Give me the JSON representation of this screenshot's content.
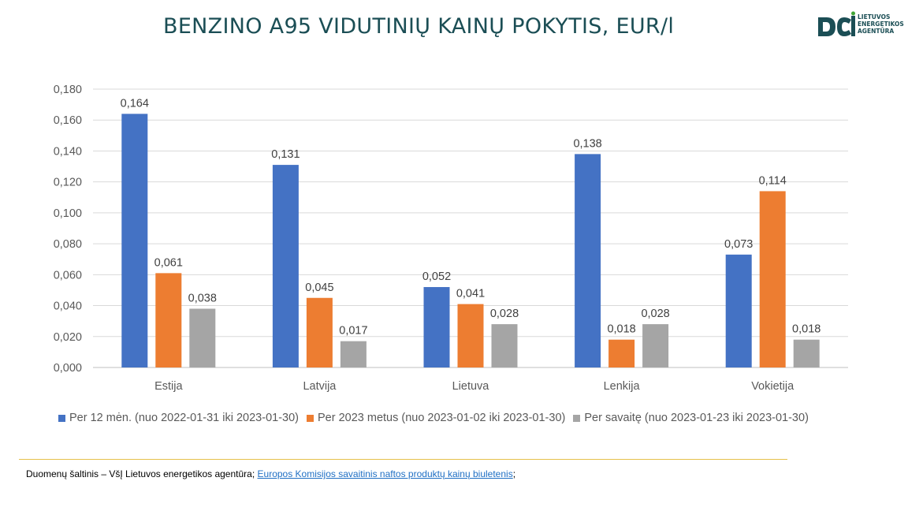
{
  "title": "BENZINO A95 VIDUTINIŲ KAINŲ POKYTIS, EUR/l",
  "logo": {
    "lines": [
      "LIETUVOS",
      "ENERGETIKOS",
      "AGENTŪRA"
    ],
    "mark_color": "#1b4e55"
  },
  "chart_data": {
    "type": "bar",
    "categories": [
      "Estija",
      "Latvija",
      "Lietuva",
      "Lenkija",
      "Vokietija"
    ],
    "series": [
      {
        "name": "Per 12 mėn. (nuo 2022-01-31 iki 2023-01-30)",
        "color": "#4472c4",
        "values": [
          0.164,
          0.131,
          0.052,
          0.138,
          0.073
        ],
        "labels": [
          "0,164",
          "0,131",
          "0,052",
          "0,138",
          "0,073"
        ]
      },
      {
        "name": "Per 2023 metus (nuo 2023-01-02 iki 2023-01-30)",
        "color": "#ed7d31",
        "values": [
          0.061,
          0.045,
          0.041,
          0.018,
          0.114
        ],
        "labels": [
          "0,061",
          "0,045",
          "0,041",
          "0,018",
          "0,114"
        ]
      },
      {
        "name": "Per savaitę (nuo 2023-01-23 iki 2023-01-30)",
        "color": "#a5a5a5",
        "values": [
          0.038,
          0.017,
          0.028,
          0.028,
          0.018
        ],
        "labels": [
          "0,038",
          "0,017",
          "0,028",
          "0,028",
          "0,018"
        ]
      }
    ],
    "yticks": [
      "0,000",
      "0,020",
      "0,040",
      "0,060",
      "0,080",
      "0,100",
      "0,120",
      "0,140",
      "0,160",
      "0,180"
    ],
    "ylim": [
      0,
      0.18
    ],
    "grid": true,
    "legend": "bottom"
  },
  "source": {
    "prefix": "Duomenų šaltinis – VšĮ Lietuvos energetikos agentūra; ",
    "link_text": "Europos Komisijos savaitinis naftos produktų kainų biuletenis",
    "suffix": ";"
  }
}
